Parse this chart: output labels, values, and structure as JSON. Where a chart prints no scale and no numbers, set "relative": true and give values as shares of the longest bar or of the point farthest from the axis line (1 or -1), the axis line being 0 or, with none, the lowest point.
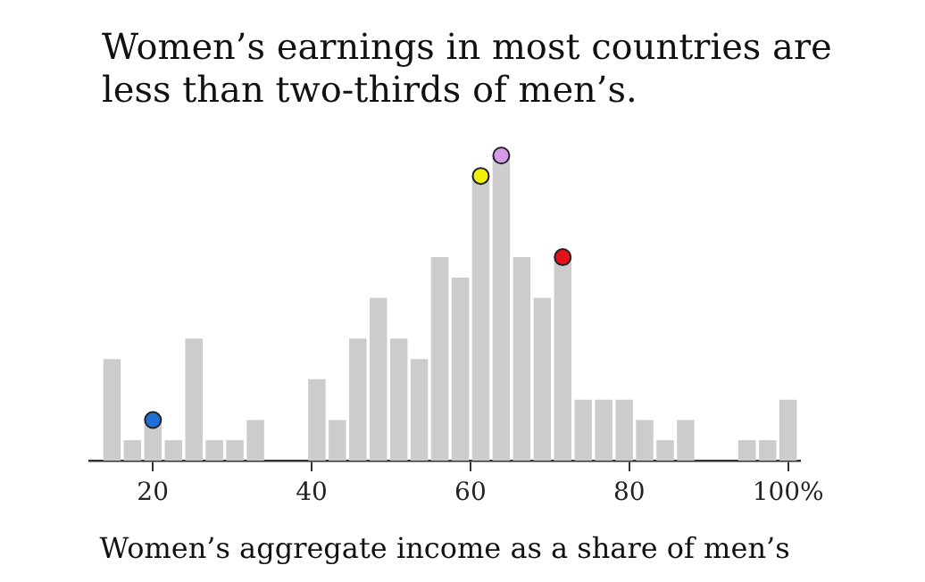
{
  "chart_data": {
    "type": "histogram",
    "title": "Women’s earnings in most countries are less than two-thirds of men’s.",
    "xlabel": "Women’s aggregate income as a share of men’s",
    "relative": true,
    "color": "#cccccc",
    "bins": [
      13.57,
      16.15,
      18.73,
      21.31,
      23.89,
      26.47,
      29.05,
      31.63,
      34.21,
      36.79,
      39.37,
      41.95,
      44.53,
      47.11,
      49.69,
      52.27,
      54.85,
      57.43,
      60.01,
      62.59,
      65.17,
      67.75,
      70.33,
      72.91,
      75.49,
      78.07,
      80.65,
      83.23,
      85.81,
      88.39,
      90.97,
      93.55,
      96.13,
      98.71,
      101.29
    ],
    "values": [
      0.333,
      0.067,
      0.133,
      0.067,
      0.4,
      0.067,
      0.067,
      0.133,
      0,
      0,
      0.267,
      0.133,
      0.4,
      0.533,
      0.4,
      0.333,
      0.667,
      0.6,
      0.933,
      1,
      0.667,
      0.533,
      0.667,
      0.2,
      0.2,
      0.2,
      0.133,
      0.067,
      0.133,
      0,
      0,
      0.067,
      0.067,
      0.2
    ],
    "series": [
      {
        "type": "scatter",
        "x": [
          20.02,
          61.3,
          63.88,
          71.62
        ],
        "values": [
          0.133,
          0.933,
          1,
          0.667
        ],
        "colors": [
          "#1f6fd6",
          "#f2ee10",
          "#d59be6",
          "#e8101a"
        ]
      }
    ],
    "xlim": [
      12,
      101.5
    ],
    "xticks": [
      20,
      40,
      60,
      80,
      {
        "value": 100,
        "label": "100%"
      }
    ],
    "grid": false,
    "legend": false,
    "marker": "circle"
  }
}
